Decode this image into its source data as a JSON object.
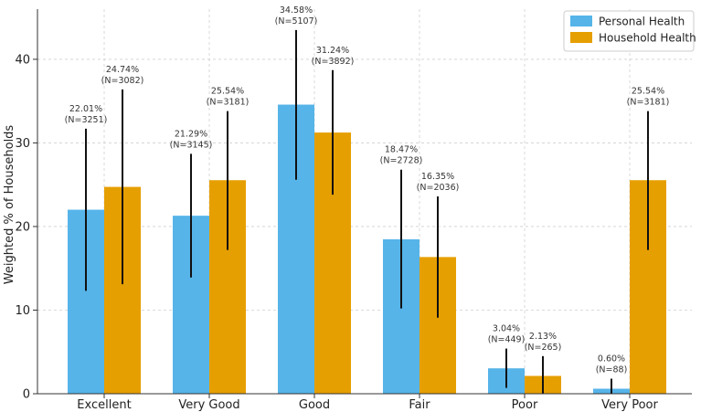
{
  "chart_data": {
    "type": "bar",
    "categories": [
      "Excellent",
      "Very Good",
      "Good",
      "Fair",
      "Poor",
      "Very Poor"
    ],
    "ylabel": "Weighted % of Households",
    "xlabel": "",
    "ylim": [
      0,
      46
    ],
    "yticks": [
      0,
      10,
      20,
      30,
      40
    ],
    "grid": true,
    "legend_position": "top-right",
    "series": [
      {
        "name": "Personal Health",
        "color": "#56B4E9",
        "values": [
          22.01,
          21.29,
          34.58,
          18.47,
          3.04,
          0.6
        ],
        "error_low": [
          12.3,
          13.9,
          25.6,
          10.2,
          0.7,
          0.0
        ],
        "error_high": [
          31.7,
          28.7,
          43.5,
          26.8,
          5.4,
          1.8
        ],
        "labels": [
          "22.01%",
          "21.29%",
          "34.58%",
          "18.47%",
          "3.04%",
          "0.60%"
        ],
        "counts": [
          "(N=3251)",
          "(N=3145)",
          "(N=5107)",
          "(N=2728)",
          "(N=449)",
          "(N=88)"
        ]
      },
      {
        "name": "Household Health",
        "color": "#E69F00",
        "values": [
          24.74,
          25.54,
          31.24,
          16.35,
          2.13,
          25.54
        ],
        "error_low": [
          13.1,
          17.2,
          23.8,
          9.1,
          0.0,
          17.2
        ],
        "error_high": [
          36.4,
          33.8,
          38.7,
          23.6,
          4.5,
          33.8
        ],
        "labels": [
          "24.74%",
          "25.54%",
          "31.24%",
          "16.35%",
          "2.13%",
          "25.54%"
        ],
        "counts": [
          "(N=3082)",
          "(N=3181)",
          "(N=3892)",
          "(N=2036)",
          "(N=265)",
          "(N=3181)"
        ]
      }
    ]
  }
}
